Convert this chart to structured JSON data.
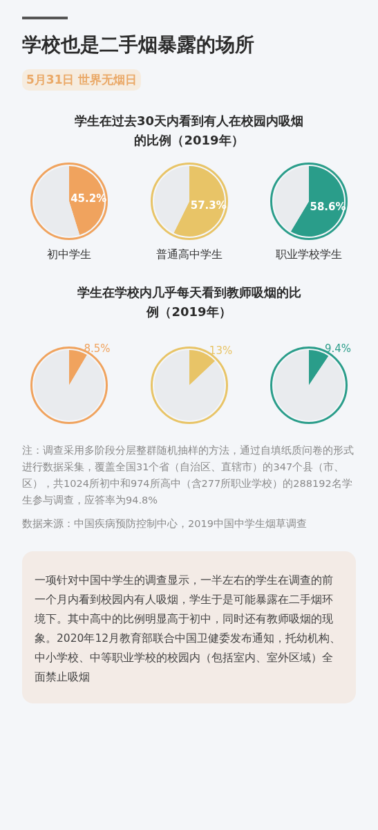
{
  "chart_data": [
    {
      "type": "other",
      "title": "学校也是二手烟暴露的场所",
      "subtitle": "5月31日 世界无烟日"
    },
    {
      "type": "pie",
      "title": "学生在过去30天内看到有人在校园内吸烟的比例（2019年）",
      "xlabel": "初中学生",
      "categories": [
        null,
        null
      ],
      "values": [
        45.2,
        54.8
      ],
      "colors": [
        "#f0a35e",
        "#e9ebee"
      ],
      "value_labels": [
        "45.2%",
        null
      ]
    },
    {
      "type": "pie",
      "xlabel": "普通高中学生",
      "categories": [
        null,
        null
      ],
      "values": [
        57.3,
        42.7
      ],
      "colors": [
        "#e8c467",
        "#e9ebee"
      ],
      "value_labels": [
        "57.3%",
        null
      ]
    },
    {
      "type": "pie",
      "xlabel": "职业学校学生",
      "categories": [
        null,
        null
      ],
      "values": [
        58.6,
        41.4
      ],
      "colors": [
        "#2a9d8a",
        "#e9ebee"
      ],
      "value_labels": [
        "58.6%",
        null
      ]
    },
    {
      "type": "pie",
      "title": "学生在学校内几乎每天看到教师吸烟的比例（2019年）",
      "categories": [
        null,
        null
      ],
      "values": [
        8.5,
        91.5
      ],
      "colors": [
        "#f0a35e",
        "#e9ebee"
      ],
      "value_labels": [
        "8.5%",
        null
      ]
    },
    {
      "type": "pie",
      "categories": [
        null,
        null
      ],
      "values": [
        13,
        87
      ],
      "colors": [
        "#e8c467",
        "#e9ebee"
      ],
      "value_labels": [
        "13%",
        null
      ]
    },
    {
      "type": "pie",
      "categories": [
        null,
        null
      ],
      "values": [
        9.4,
        90.6
      ],
      "colors": [
        "#2a9d8a",
        "#e9ebee"
      ],
      "value_labels": [
        "9.4%",
        null
      ]
    },
    {
      "type": "other",
      "annotations": [
        "注：调查采用多阶段分层整群随机抽样的方法，通过自填纸质问卷的形式进行数据采集，覆盖全国31个省（自治区、直辖市）的347个县（市、区），共1024所初中和974所高中（含277所职业学校）的288192名学生参与调查，应答率为94.8%",
        "数据来源：中国疾病预防控制中心，2019中国中学生烟草调查"
      ]
    },
    {
      "type": "other",
      "annotations": [
        "一项针对中国中学生的调查显示，一半左右的学生在调查的前一个月内看到校园内有人吸烟，学生于是可能暴露在二手烟环境下。其中高中的比例明显高于初中，同时还有教师吸烟的现象。2020年12月教育部联合中国卫健委发布通知，托幼机构、中小学校、中等职业学校的校园内（包括室内、室外区域）全面禁止吸烟"
      ]
    }
  ]
}
